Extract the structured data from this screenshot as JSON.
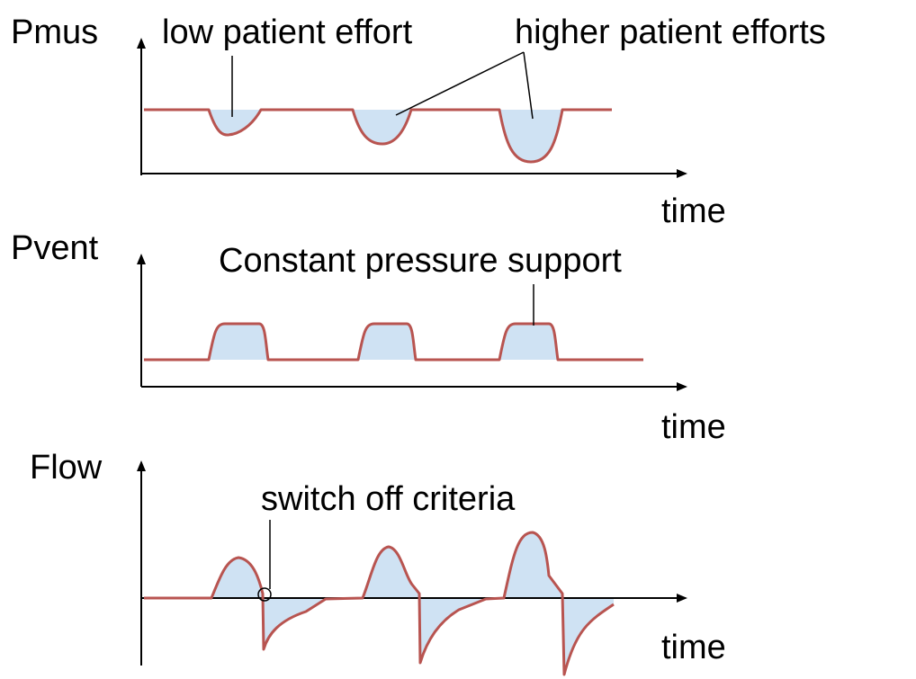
{
  "panels": [
    {
      "label": "Pmus",
      "axis_label": "time",
      "annotations": [
        "low patient effort",
        "higher patient efforts"
      ]
    },
    {
      "label": "Pvent",
      "axis_label": "time",
      "annotations": [
        "Constant pressure support"
      ]
    },
    {
      "label": "Flow",
      "axis_label": "time",
      "annotations": [
        "switch off criteria"
      ]
    }
  ]
}
